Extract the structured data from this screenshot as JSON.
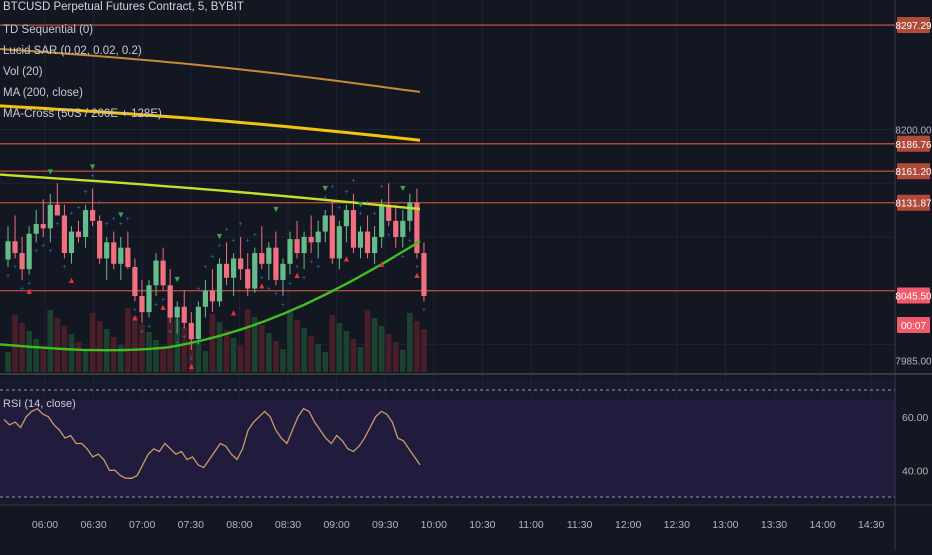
{
  "header": {
    "title": "BTCUSD Perpetual Futures Contract, 5, BYBIT"
  },
  "indicators": [
    "TD Sequential (0)",
    "Lucid SAR (0.02, 0.02, 0.2)",
    "Vol (20)",
    "MA (200, close)",
    "MA-Cross (50S / 200E + 128E)"
  ],
  "rsi_label": "RSI (14, close)",
  "price_axis": {
    "labels": [
      {
        "text": "8297.29",
        "price": 8297.29,
        "type": "badge",
        "color": "#b24a3a"
      },
      {
        "text": "8200.00",
        "price": 8200.0,
        "type": "tick"
      },
      {
        "text": "8186.76",
        "price": 8186.76,
        "type": "badge",
        "color": "#b24a3a"
      },
      {
        "text": "8161.20",
        "price": 8161.2,
        "type": "badge",
        "color": "#b24a3a"
      },
      {
        "text": "8131.87",
        "price": 8131.87,
        "type": "badge",
        "color": "#b24a3a"
      },
      {
        "text": "8045.50",
        "price": 8045.5,
        "type": "badge",
        "color": "#f05a6a"
      },
      {
        "text": "00:07",
        "price": 8018,
        "type": "badge",
        "color": "#f05a6a"
      },
      {
        "text": "7985.00",
        "price": 7985.0,
        "type": "tick"
      }
    ]
  },
  "rsi_axis": {
    "labels": [
      "60.00",
      "40.00"
    ]
  },
  "time_axis": {
    "labels": [
      "06:00",
      "06:30",
      "07:00",
      "07:30",
      "08:00",
      "08:30",
      "09:00",
      "09:30",
      "10:00",
      "10:30",
      "11:00",
      "11:30",
      "12:00",
      "12:30",
      "13:00",
      "13:30",
      "14:00",
      "14:30"
    ]
  },
  "chart_data": {
    "type": "candlestick",
    "symbol": "BTCUSD",
    "interval": "5",
    "exchange": "BYBIT",
    "y_range": [
      7978,
      8315
    ],
    "horizontal_levels": [
      8297.29,
      8186.76,
      8161.2,
      8131.87,
      8050.0
    ],
    "last_price": 8045.5,
    "colors": {
      "up": "#66bb8a",
      "down": "#f07080",
      "level": "#c0503a",
      "ma200": "#f2c40f",
      "ma_orange": "#c78a38",
      "ma_lime": "#c6e02a",
      "ma_green": "#3fbf20",
      "sar": "#2f6fd0",
      "rsi": "#c89a6a"
    },
    "candles": [
      [
        8079,
        8110,
        8072,
        8096
      ],
      [
        8096,
        8120,
        8080,
        8085
      ],
      [
        8085,
        8100,
        8060,
        8070
      ],
      [
        8070,
        8110,
        8065,
        8103
      ],
      [
        8103,
        8125,
        8095,
        8112
      ],
      [
        8112,
        8135,
        8100,
        8108
      ],
      [
        8108,
        8140,
        8095,
        8130
      ],
      [
        8130,
        8150,
        8120,
        8120
      ],
      [
        8120,
        8130,
        8080,
        8085
      ],
      [
        8085,
        8110,
        8075,
        8105
      ],
      [
        8105,
        8115,
        8095,
        8100
      ],
      [
        8100,
        8130,
        8090,
        8125
      ],
      [
        8125,
        8145,
        8110,
        8115
      ],
      [
        8115,
        8120,
        8075,
        8080
      ],
      [
        8080,
        8100,
        8060,
        8095
      ],
      [
        8095,
        8105,
        8070,
        8075
      ],
      [
        8075,
        8100,
        8060,
        8090
      ],
      [
        8090,
        8105,
        8070,
        8072
      ],
      [
        8072,
        8080,
        8040,
        8045
      ],
      [
        8045,
        8060,
        8020,
        8030
      ],
      [
        8030,
        8060,
        8025,
        8055
      ],
      [
        8055,
        8085,
        8045,
        8078
      ],
      [
        8078,
        8090,
        8050,
        8055
      ],
      [
        8055,
        8070,
        8020,
        8025
      ],
      [
        8025,
        8040,
        8010,
        8035
      ],
      [
        8035,
        8050,
        8015,
        8020
      ],
      [
        8020,
        8030,
        7995,
        8005
      ],
      [
        8005,
        8040,
        8000,
        8035
      ],
      [
        8035,
        8060,
        8025,
        8050
      ],
      [
        8050,
        8070,
        8030,
        8040
      ],
      [
        8040,
        8080,
        8035,
        8075
      ],
      [
        8075,
        8095,
        8055,
        8062
      ],
      [
        8062,
        8085,
        8045,
        8080
      ],
      [
        8080,
        8100,
        8060,
        8070
      ],
      [
        8070,
        8085,
        8045,
        8052
      ],
      [
        8052,
        8090,
        8048,
        8085
      ],
      [
        8085,
        8110,
        8070,
        8075
      ],
      [
        8075,
        8095,
        8060,
        8090
      ],
      [
        8090,
        8105,
        8055,
        8060
      ],
      [
        8060,
        8080,
        8045,
        8075
      ],
      [
        8075,
        8105,
        8065,
        8098
      ],
      [
        8098,
        8115,
        8080,
        8085
      ],
      [
        8085,
        8105,
        8070,
        8100
      ],
      [
        8100,
        8120,
        8085,
        8095
      ],
      [
        8095,
        8115,
        8080,
        8105
      ],
      [
        8105,
        8125,
        8095,
        8120
      ],
      [
        8120,
        8135,
        8075,
        8080
      ],
      [
        8080,
        8115,
        8070,
        8110
      ],
      [
        8110,
        8130,
        8095,
        8125
      ],
      [
        8125,
        8140,
        8085,
        8090
      ],
      [
        8090,
        8110,
        8080,
        8105
      ],
      [
        8105,
        8120,
        8080,
        8085
      ],
      [
        8085,
        8110,
        8075,
        8100
      ],
      [
        8100,
        8135,
        8090,
        8130
      ],
      [
        8130,
        8150,
        8110,
        8115
      ],
      [
        8115,
        8130,
        8090,
        8100
      ],
      [
        8100,
        8125,
        8090,
        8115
      ],
      [
        8115,
        8140,
        8105,
        8132
      ],
      [
        8132,
        8145,
        8080,
        8085
      ],
      [
        8085,
        8095,
        8040,
        8045
      ]
    ],
    "ma_lines": {
      "orange_200e": [
        8275,
        8235
      ],
      "ma200": [
        8222,
        8190
      ],
      "lime_128e": [
        8158,
        8126
      ],
      "green_50s": [
        7998,
        8096
      ]
    },
    "rsi": [
      59,
      57,
      58,
      56,
      60,
      62,
      63,
      61,
      60,
      57,
      55,
      52,
      53,
      50,
      50,
      48,
      45,
      46,
      44,
      40,
      40,
      38,
      37,
      37,
      38,
      42,
      46,
      48,
      47,
      50,
      48,
      46,
      47,
      44,
      45,
      42,
      41,
      44,
      47,
      50,
      49,
      46,
      44,
      48,
      55,
      58,
      60,
      62,
      60,
      55,
      52,
      50,
      55,
      60,
      63,
      62,
      58,
      55,
      52,
      50,
      53,
      51,
      48,
      47,
      49,
      52,
      56,
      60,
      62,
      61,
      58,
      52,
      51,
      48,
      45,
      42
    ],
    "rsi_range": [
      30,
      70
    ]
  }
}
